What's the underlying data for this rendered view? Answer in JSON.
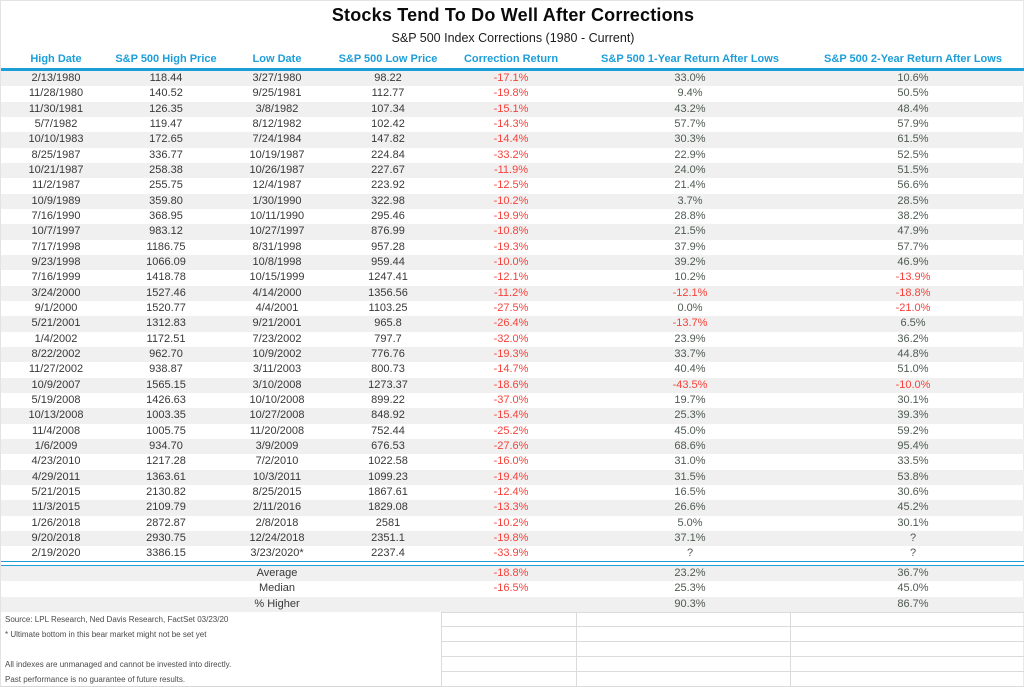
{
  "title": "Stocks Tend To Do Well After Corrections",
  "subtitle": "S&P 500 Index Corrections (1980 - Current)",
  "colors": {
    "accent_blue": "#1E9ED9",
    "negative_red": "#F8413A",
    "positive_text": "#4E5A51",
    "stripe_gray": "#F0F0F0",
    "body_text": "#383838"
  },
  "chart_data": {
    "type": "table",
    "columns": [
      "High Date",
      "S&P 500 High Price",
      "Low Date",
      "S&P 500 Low Price",
      "Correction Return",
      "S&P 500 1-Year Return After Lows",
      "S&P 500 2-Year Return After Lows"
    ],
    "rows": [
      [
        "2/13/1980",
        "118.44",
        "3/27/1980",
        "98.22",
        "-17.1%",
        "33.0%",
        "10.6%"
      ],
      [
        "11/28/1980",
        "140.52",
        "9/25/1981",
        "112.77",
        "-19.8%",
        "9.4%",
        "50.5%"
      ],
      [
        "11/30/1981",
        "126.35",
        "3/8/1982",
        "107.34",
        "-15.1%",
        "43.2%",
        "48.4%"
      ],
      [
        "5/7/1982",
        "119.47",
        "8/12/1982",
        "102.42",
        "-14.3%",
        "57.7%",
        "57.9%"
      ],
      [
        "10/10/1983",
        "172.65",
        "7/24/1984",
        "147.82",
        "-14.4%",
        "30.3%",
        "61.5%"
      ],
      [
        "8/25/1987",
        "336.77",
        "10/19/1987",
        "224.84",
        "-33.2%",
        "22.9%",
        "52.5%"
      ],
      [
        "10/21/1987",
        "258.38",
        "10/26/1987",
        "227.67",
        "-11.9%",
        "24.0%",
        "51.5%"
      ],
      [
        "11/2/1987",
        "255.75",
        "12/4/1987",
        "223.92",
        "-12.5%",
        "21.4%",
        "56.6%"
      ],
      [
        "10/9/1989",
        "359.80",
        "1/30/1990",
        "322.98",
        "-10.2%",
        "3.7%",
        "28.5%"
      ],
      [
        "7/16/1990",
        "368.95",
        "10/11/1990",
        "295.46",
        "-19.9%",
        "28.8%",
        "38.2%"
      ],
      [
        "10/7/1997",
        "983.12",
        "10/27/1997",
        "876.99",
        "-10.8%",
        "21.5%",
        "47.9%"
      ],
      [
        "7/17/1998",
        "1186.75",
        "8/31/1998",
        "957.28",
        "-19.3%",
        "37.9%",
        "57.7%"
      ],
      [
        "9/23/1998",
        "1066.09",
        "10/8/1998",
        "959.44",
        "-10.0%",
        "39.2%",
        "46.9%"
      ],
      [
        "7/16/1999",
        "1418.78",
        "10/15/1999",
        "1247.41",
        "-12.1%",
        "10.2%",
        "-13.9%"
      ],
      [
        "3/24/2000",
        "1527.46",
        "4/14/2000",
        "1356.56",
        "-11.2%",
        "-12.1%",
        "-18.8%"
      ],
      [
        "9/1/2000",
        "1520.77",
        "4/4/2001",
        "1103.25",
        "-27.5%",
        "0.0%",
        "-21.0%"
      ],
      [
        "5/21/2001",
        "1312.83",
        "9/21/2001",
        "965.8",
        "-26.4%",
        "-13.7%",
        "6.5%"
      ],
      [
        "1/4/2002",
        "1172.51",
        "7/23/2002",
        "797.7",
        "-32.0%",
        "23.9%",
        "36.2%"
      ],
      [
        "8/22/2002",
        "962.70",
        "10/9/2002",
        "776.76",
        "-19.3%",
        "33.7%",
        "44.8%"
      ],
      [
        "11/27/2002",
        "938.87",
        "3/11/2003",
        "800.73",
        "-14.7%",
        "40.4%",
        "51.0%"
      ],
      [
        "10/9/2007",
        "1565.15",
        "3/10/2008",
        "1273.37",
        "-18.6%",
        "-43.5%",
        "-10.0%"
      ],
      [
        "5/19/2008",
        "1426.63",
        "10/10/2008",
        "899.22",
        "-37.0%",
        "19.7%",
        "30.1%"
      ],
      [
        "10/13/2008",
        "1003.35",
        "10/27/2008",
        "848.92",
        "-15.4%",
        "25.3%",
        "39.3%"
      ],
      [
        "11/4/2008",
        "1005.75",
        "11/20/2008",
        "752.44",
        "-25.2%",
        "45.0%",
        "59.2%"
      ],
      [
        "1/6/2009",
        "934.70",
        "3/9/2009",
        "676.53",
        "-27.6%",
        "68.6%",
        "95.4%"
      ],
      [
        "4/23/2010",
        "1217.28",
        "7/2/2010",
        "1022.58",
        "-16.0%",
        "31.0%",
        "33.5%"
      ],
      [
        "4/29/2011",
        "1363.61",
        "10/3/2011",
        "1099.23",
        "-19.4%",
        "31.5%",
        "53.8%"
      ],
      [
        "5/21/2015",
        "2130.82",
        "8/25/2015",
        "1867.61",
        "-12.4%",
        "16.5%",
        "30.6%"
      ],
      [
        "11/3/2015",
        "2109.79",
        "2/11/2016",
        "1829.08",
        "-13.3%",
        "26.6%",
        "45.2%"
      ],
      [
        "1/26/2018",
        "2872.87",
        "2/8/2018",
        "2581",
        "-10.2%",
        "5.0%",
        "30.1%"
      ],
      [
        "9/20/2018",
        "2930.75",
        "12/24/2018",
        "2351.1",
        "-19.8%",
        "37.1%",
        "?"
      ],
      [
        "2/19/2020",
        "3386.15",
        "3/23/2020*",
        "2237.4",
        "-33.9%",
        "?",
        "?"
      ]
    ],
    "summary_rows": [
      {
        "label": "Average",
        "correction_return": "-18.8%",
        "one_year": "23.2%",
        "two_year": "36.7%"
      },
      {
        "label": "Median",
        "correction_return": "-16.5%",
        "one_year": "25.3%",
        "two_year": "45.0%"
      },
      {
        "label": "% Higher",
        "correction_return": "",
        "one_year": "90.3%",
        "two_year": "86.7%"
      }
    ]
  },
  "notes": {
    "source": "Source: LPL Research, Ned Davis Research, FactSet 03/23/20",
    "footnote": "* Ultimate bottom in this bear market might not be set yet",
    "disclaimer1": "All indexes are unmanaged and cannot be invested into directly.",
    "disclaimer2": "Past performance is no guarantee of future results."
  }
}
